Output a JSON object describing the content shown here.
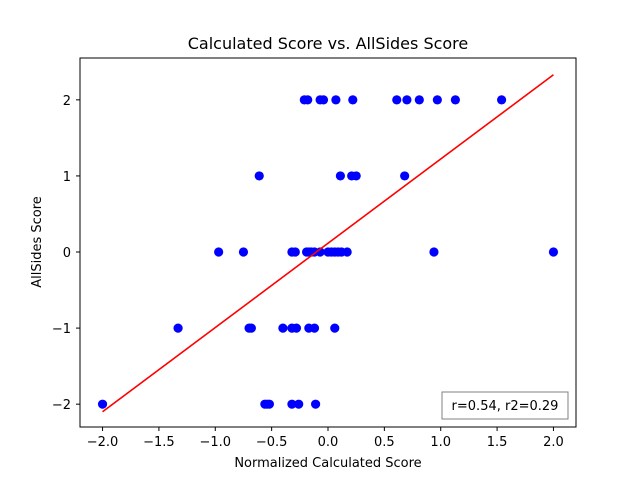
{
  "chart_data": {
    "type": "scatter",
    "title": "Calculated Score vs. AllSides Score",
    "xlabel": "Normalized Calculated Score",
    "ylabel": "AllSides Score",
    "xlim": [
      -2.2,
      2.2
    ],
    "ylim": [
      -2.3,
      2.55
    ],
    "xticks": [
      -2.0,
      -1.5,
      -1.0,
      -0.5,
      0.0,
      0.5,
      1.0,
      1.5,
      2.0
    ],
    "xtick_labels": [
      "−2.0",
      "−1.5",
      "−1.0",
      "−0.5",
      "0.0",
      "0.5",
      "1.0",
      "1.5",
      "2.0"
    ],
    "yticks": [
      -2,
      -1,
      0,
      1,
      2
    ],
    "ytick_labels": [
      "−2",
      "−1",
      "0",
      "1",
      "2"
    ],
    "grid": false,
    "series": [
      {
        "kind": "points",
        "color": "#0000ff",
        "x": [
          -2.0,
          -0.56,
          -0.54,
          -0.52,
          -0.32,
          -0.26,
          -0.11,
          -1.33,
          -0.7,
          -0.68,
          -0.4,
          -0.32,
          -0.28,
          -0.17,
          -0.12,
          0.06,
          -0.97,
          -0.75,
          -0.32,
          -0.29,
          -0.19,
          -0.17,
          -0.15,
          -0.12,
          -0.07,
          0.0,
          0.03,
          0.06,
          0.09,
          0.12,
          0.17,
          0.94,
          2.0,
          -0.61,
          0.11,
          0.21,
          0.25,
          0.68,
          -0.21,
          -0.18,
          -0.07,
          -0.04,
          0.07,
          0.22,
          0.61,
          0.7,
          0.81,
          0.97,
          1.13,
          1.54
        ],
        "y": [
          -2,
          -2,
          -2,
          -2,
          -2,
          -2,
          -2,
          -1,
          -1,
          -1,
          -1,
          -1,
          -1,
          -1,
          -1,
          -1,
          0,
          0,
          0,
          0,
          0,
          0,
          0,
          0,
          0,
          0,
          0,
          0,
          0,
          0,
          0,
          0,
          0,
          1,
          1,
          1,
          1,
          1,
          2,
          2,
          2,
          2,
          2,
          2,
          2,
          2,
          2,
          2,
          2,
          2
        ]
      },
      {
        "kind": "fit-line",
        "color": "#ff0000",
        "x": [
          -2.0,
          2.0
        ],
        "y": [
          -2.1,
          2.33
        ]
      }
    ],
    "annotation": {
      "text": "r=0.54, r2=0.29",
      "position": "lower-right"
    }
  }
}
